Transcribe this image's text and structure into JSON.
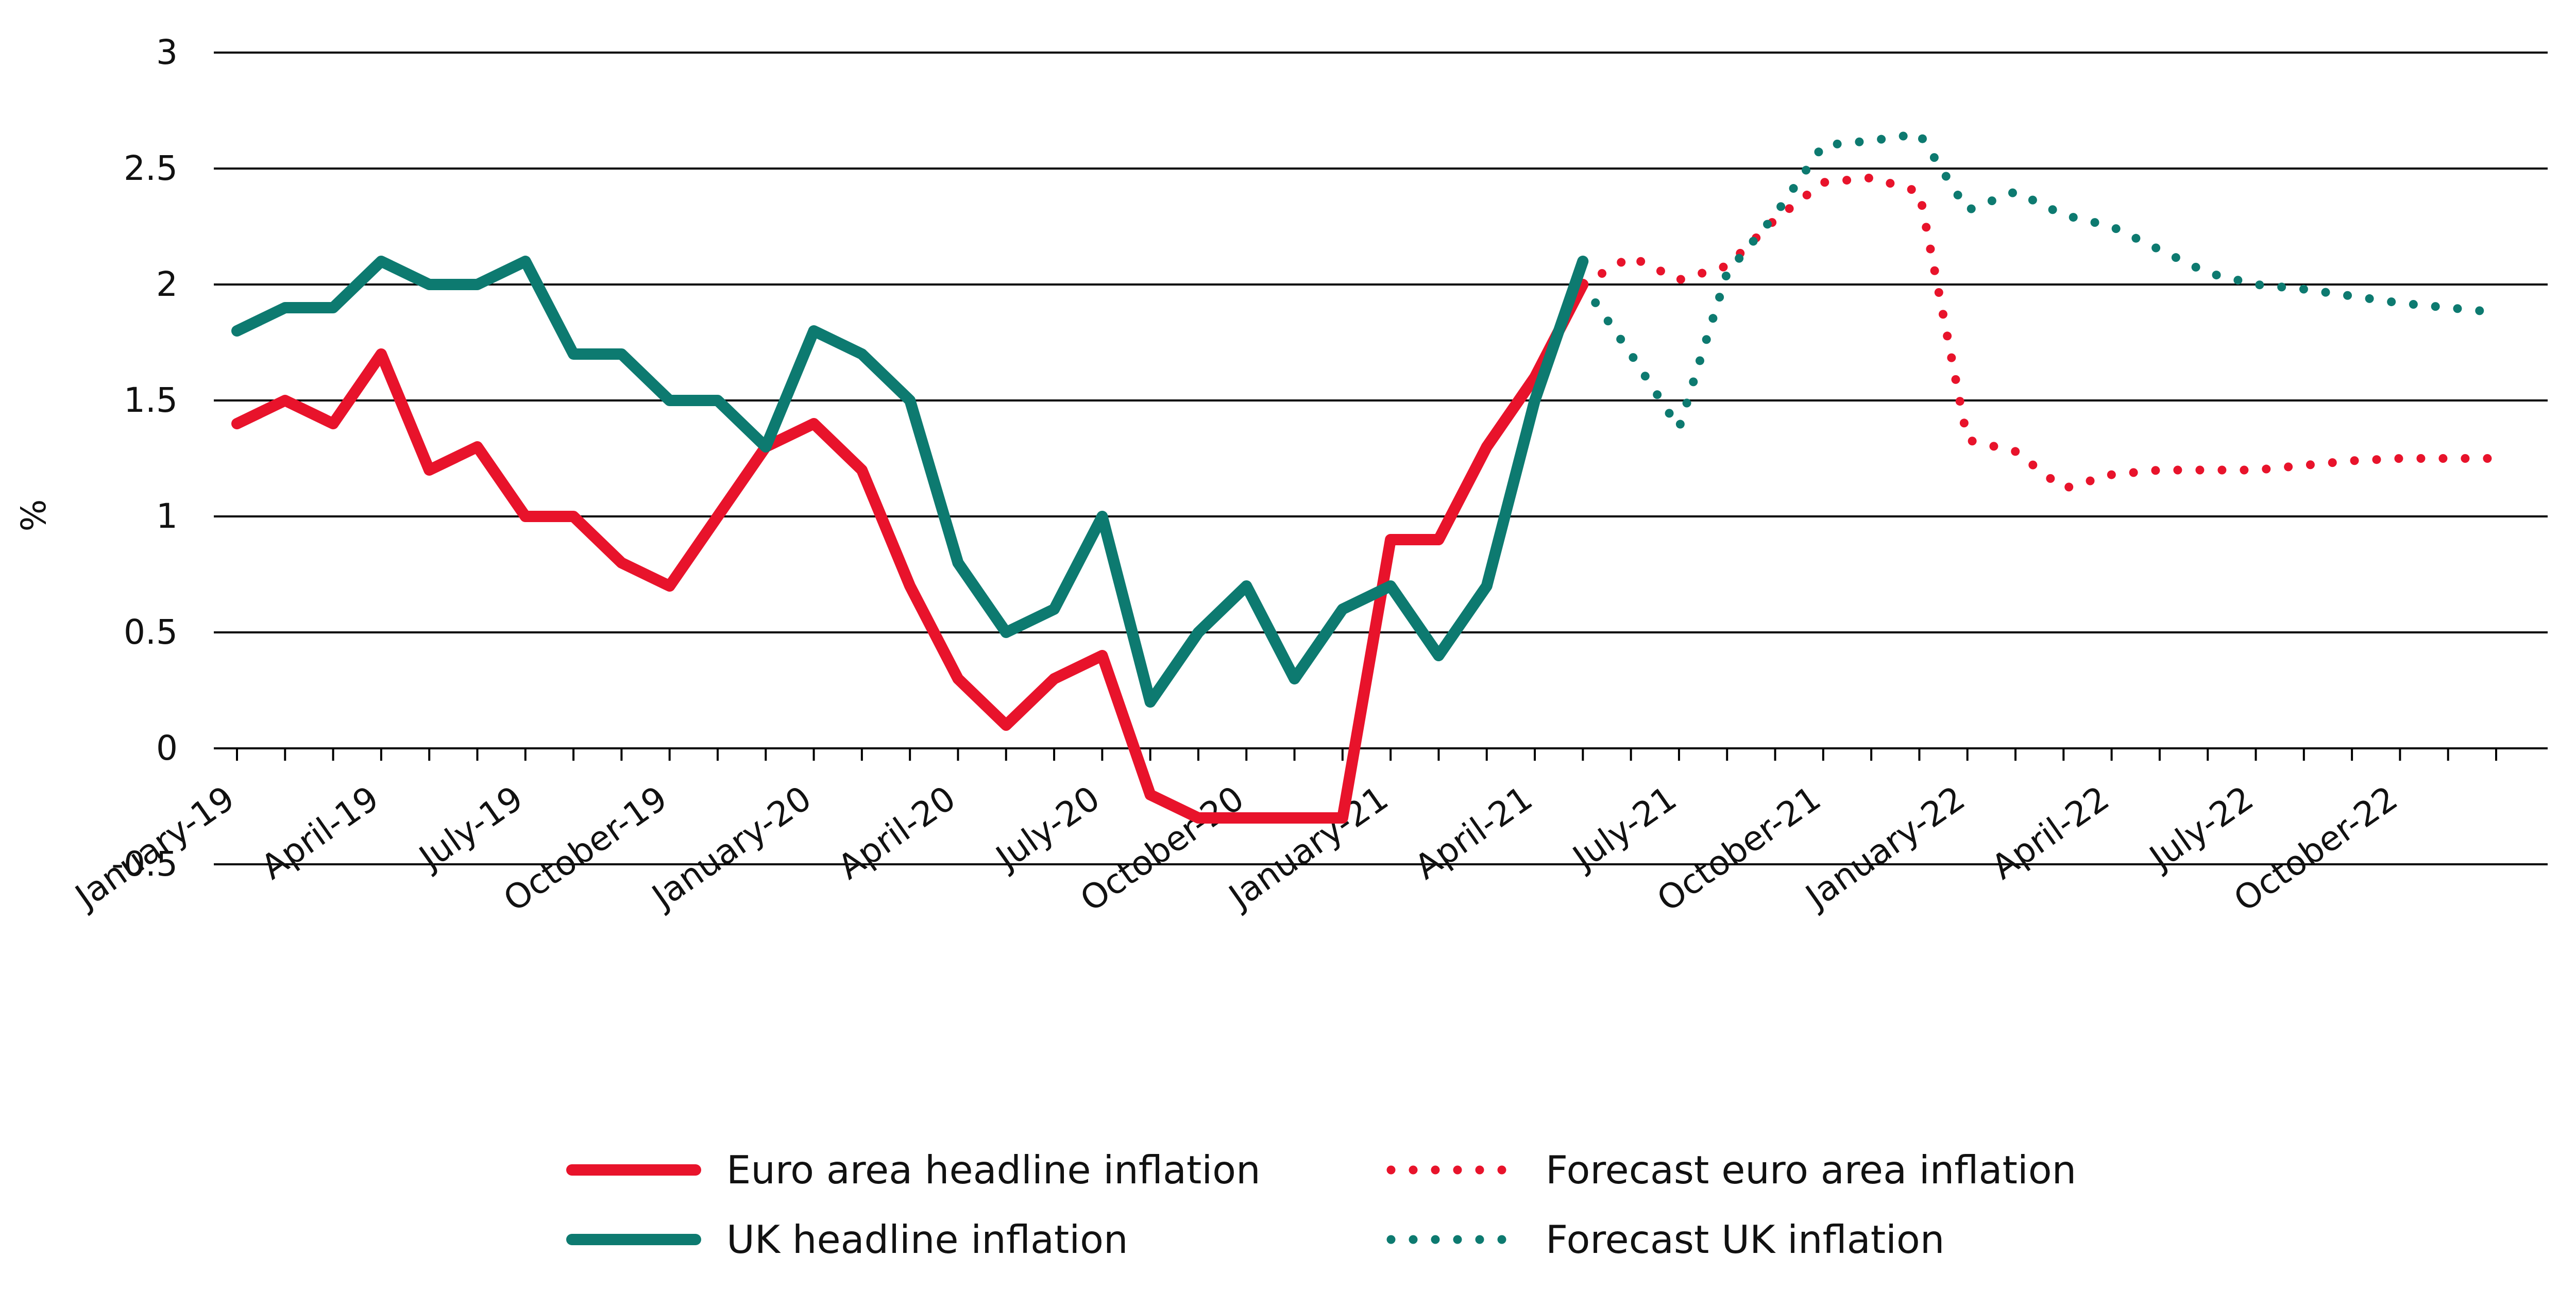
{
  "chart_data": {
    "type": "line",
    "ylabel": "%",
    "ylim": [
      -0.5,
      3
    ],
    "yticks": [
      "-0.5",
      "0",
      "0.5",
      "1",
      "1.5",
      "2",
      "2.5",
      "3"
    ],
    "grid": true,
    "legend_position": "bottom",
    "x": [
      "January-19",
      "February-19",
      "March-19",
      "April-19",
      "May-19",
      "June-19",
      "July-19",
      "August-19",
      "September-19",
      "October-19",
      "November-19",
      "December-19",
      "January-20",
      "February-20",
      "March-20",
      "April-20",
      "May-20",
      "June-20",
      "July-20",
      "August-20",
      "September-20",
      "October-20",
      "November-20",
      "December-20",
      "January-21",
      "February-21",
      "March-21",
      "April-21",
      "May-21",
      "June-21",
      "July-21",
      "August-21",
      "September-21",
      "October-21",
      "November-21",
      "December-21",
      "January-22",
      "February-22",
      "March-22",
      "April-22",
      "May-22",
      "June-22",
      "July-22",
      "August-22",
      "September-22",
      "October-22",
      "November-22",
      "December-22"
    ],
    "xtick_labels": [
      "January-19",
      "April-19",
      "July-19",
      "October-19",
      "January-20",
      "April-20",
      "July-20",
      "October-20",
      "January-21",
      "April-21",
      "July-21",
      "October-21",
      "January-22",
      "April-22",
      "July-22",
      "October-22"
    ],
    "series": [
      {
        "name": "Euro area headline inflation",
        "color": "#e8132b",
        "dash": "solid",
        "values": [
          1.4,
          1.5,
          1.4,
          1.7,
          1.2,
          1.3,
          1.0,
          1.0,
          0.8,
          0.7,
          1.0,
          1.3,
          1.4,
          1.2,
          0.7,
          0.3,
          0.1,
          0.3,
          0.4,
          -0.2,
          -0.3,
          -0.3,
          -0.3,
          -0.3,
          0.9,
          0.9,
          1.3,
          1.6,
          2.0,
          null,
          null,
          null,
          null,
          null,
          null,
          null,
          null,
          null,
          null,
          null,
          null,
          null,
          null,
          null,
          null,
          null,
          null,
          null
        ]
      },
      {
        "name": "UK headline inflation",
        "color": "#0d7a70",
        "dash": "solid",
        "values": [
          1.8,
          1.9,
          1.9,
          2.1,
          2.0,
          2.0,
          2.1,
          1.7,
          1.7,
          1.5,
          1.5,
          1.3,
          1.8,
          1.7,
          1.5,
          0.8,
          0.5,
          0.6,
          1.0,
          0.2,
          0.5,
          0.7,
          0.3,
          0.6,
          0.7,
          0.4,
          0.7,
          1.5,
          2.1,
          null,
          null,
          null,
          null,
          null,
          null,
          null,
          null,
          null,
          null,
          null,
          null,
          null,
          null,
          null,
          null,
          null,
          null,
          null
        ]
      },
      {
        "name": "Forecast euro area inflation",
        "color": "#e8132b",
        "dash": "dotted",
        "values": [
          null,
          null,
          null,
          null,
          null,
          null,
          null,
          null,
          null,
          null,
          null,
          null,
          null,
          null,
          null,
          null,
          null,
          null,
          null,
          null,
          null,
          null,
          null,
          null,
          null,
          null,
          null,
          null,
          2.0,
          2.12,
          2.02,
          2.08,
          2.28,
          2.44,
          2.46,
          2.4,
          1.33,
          1.28,
          1.12,
          1.18,
          1.2,
          1.2,
          1.2,
          1.22,
          1.24,
          1.25,
          1.25,
          1.25
        ]
      },
      {
        "name": "Forecast UK inflation",
        "color": "#0d7a70",
        "dash": "dotted",
        "values": [
          null,
          null,
          null,
          null,
          null,
          null,
          null,
          null,
          null,
          null,
          null,
          null,
          null,
          null,
          null,
          null,
          null,
          null,
          null,
          null,
          null,
          null,
          null,
          null,
          null,
          null,
          null,
          null,
          2.0,
          1.7,
          1.38,
          2.05,
          2.3,
          2.6,
          2.62,
          2.65,
          2.32,
          2.4,
          2.3,
          2.25,
          2.15,
          2.05,
          2.0,
          1.98,
          1.95,
          1.92,
          1.9,
          1.88
        ]
      }
    ]
  }
}
